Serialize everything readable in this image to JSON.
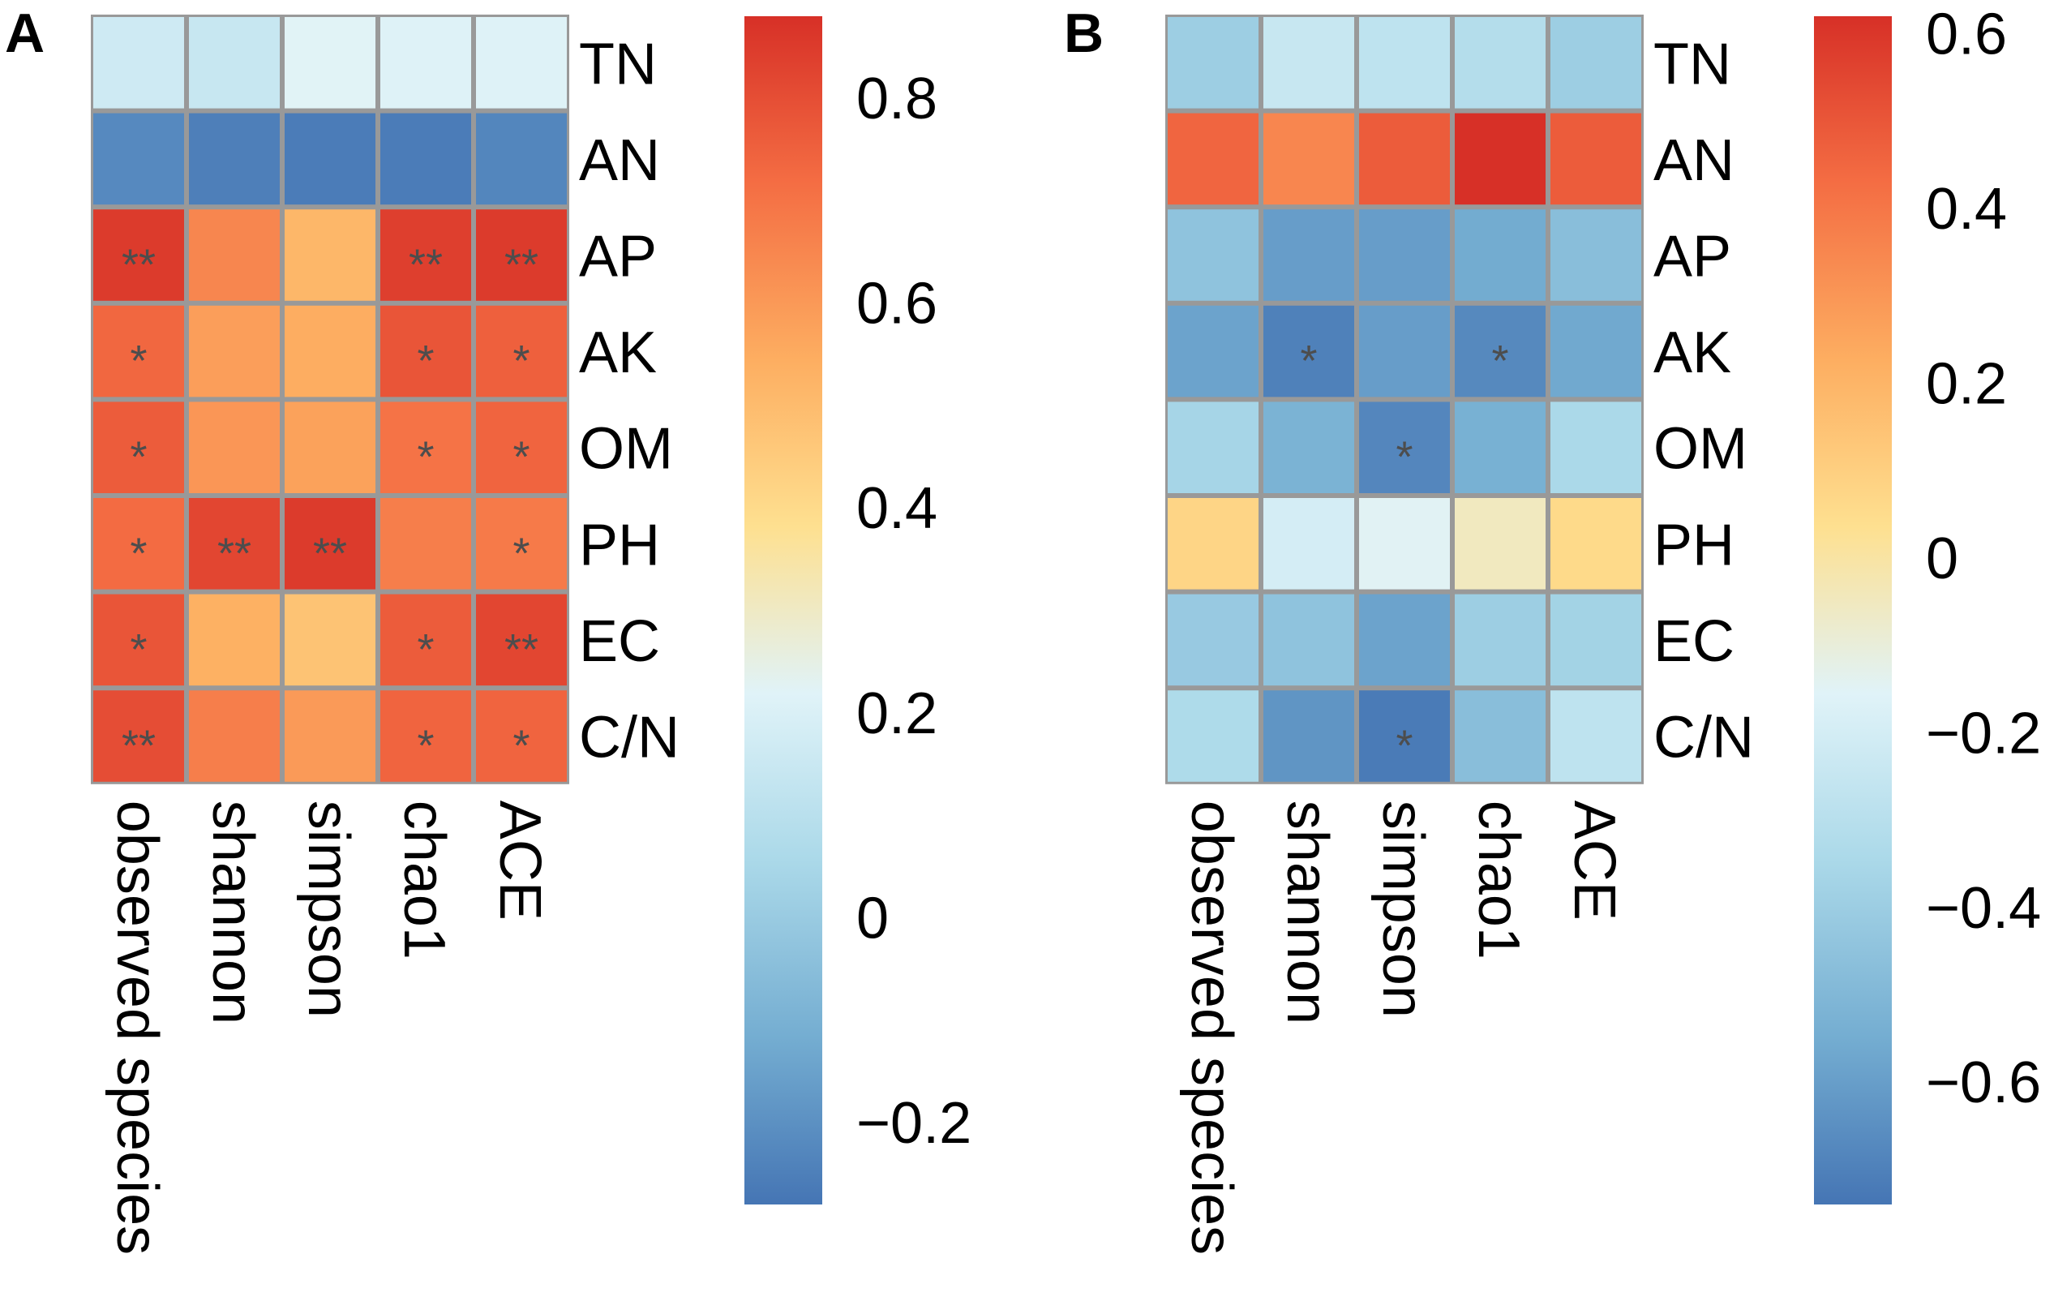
{
  "chart_data": [
    {
      "type": "heatmap",
      "panel_label": "A",
      "rows": [
        "TN",
        "AN",
        "AP",
        "AK",
        "OM",
        "PH",
        "EC",
        "C/N"
      ],
      "columns": [
        "observed species",
        "shannon",
        "simpson",
        "chao1",
        "ACE"
      ],
      "values": [
        [
          0.16,
          0.14,
          0.22,
          0.21,
          0.21
        ],
        [
          -0.22,
          -0.25,
          -0.26,
          -0.26,
          -0.23
        ],
        [
          0.85,
          0.65,
          0.52,
          0.84,
          0.85
        ],
        [
          0.73,
          0.59,
          0.55,
          0.78,
          0.75
        ],
        [
          0.76,
          0.61,
          0.58,
          0.7,
          0.74
        ],
        [
          0.72,
          0.82,
          0.85,
          0.67,
          0.68
        ],
        [
          0.78,
          0.54,
          0.48,
          0.76,
          0.82
        ],
        [
          0.8,
          0.67,
          0.6,
          0.74,
          0.74
        ]
      ],
      "significance": [
        [
          "",
          "",
          "",
          "",
          ""
        ],
        [
          "",
          "",
          "",
          "",
          ""
        ],
        [
          "**",
          "",
          "",
          "**",
          "**"
        ],
        [
          "*",
          "",
          "",
          "*",
          "*"
        ],
        [
          "*",
          "",
          "",
          "*",
          "*"
        ],
        [
          "*",
          "**",
          "**",
          "",
          "*"
        ],
        [
          "*",
          "",
          "",
          "*",
          "**"
        ],
        [
          "**",
          "",
          "",
          "*",
          "*"
        ]
      ],
      "colorbar": {
        "range": [
          -0.28,
          0.88
        ],
        "ticks": [
          0.8,
          0.6,
          0.4,
          0.2,
          0,
          -0.2
        ],
        "tick_labels": [
          "0.8",
          "0.6",
          "0.4",
          "0.2",
          "0",
          "−0.2"
        ]
      }
    },
    {
      "type": "heatmap",
      "panel_label": "B",
      "rows": [
        "TN",
        "AN",
        "AP",
        "AK",
        "OM",
        "PH",
        "EC",
        "C/N"
      ],
      "columns": [
        "observed species",
        "shannon",
        "simpson",
        "chao1",
        "ACE"
      ],
      "values": [
        [
          -0.4,
          -0.25,
          -0.28,
          -0.32,
          -0.4
        ],
        [
          0.45,
          0.35,
          0.48,
          0.62,
          0.48
        ],
        [
          -0.45,
          -0.6,
          -0.6,
          -0.55,
          -0.47
        ],
        [
          -0.58,
          -0.7,
          -0.6,
          -0.67,
          -0.56
        ],
        [
          -0.37,
          -0.52,
          -0.68,
          -0.53,
          -0.35
        ],
        [
          0.08,
          -0.2,
          -0.15,
          -0.05,
          0.06
        ],
        [
          -0.42,
          -0.45,
          -0.58,
          -0.4,
          -0.38
        ],
        [
          -0.34,
          -0.63,
          -0.72,
          -0.47,
          -0.28
        ]
      ],
      "significance": [
        [
          "",
          "",
          "",
          "",
          ""
        ],
        [
          "",
          "",
          "",
          "",
          ""
        ],
        [
          "",
          "",
          "",
          "",
          ""
        ],
        [
          "",
          "*",
          "",
          "*",
          ""
        ],
        [
          "",
          "",
          "*",
          "",
          ""
        ],
        [
          "",
          "",
          "",
          "",
          ""
        ],
        [
          "",
          "",
          "",
          "",
          ""
        ],
        [
          "",
          "",
          "*",
          "",
          ""
        ]
      ],
      "colorbar": {
        "range": [
          -0.74,
          0.62
        ],
        "ticks": [
          0.6,
          0.4,
          0.2,
          0,
          -0.2,
          -0.4,
          -0.6
        ],
        "tick_labels": [
          "0.6",
          "0.4",
          "0.2",
          "0",
          "−0.2",
          "−0.4",
          "−0.6"
        ]
      }
    }
  ],
  "palette": {
    "stops": [
      "#4575b4",
      "#74add1",
      "#abd9e9",
      "#e0f3f8",
      "#fee090",
      "#fdae61",
      "#f46d43",
      "#d73027"
    ],
    "grid_line": "#999999",
    "star": "#4d4d4d"
  }
}
